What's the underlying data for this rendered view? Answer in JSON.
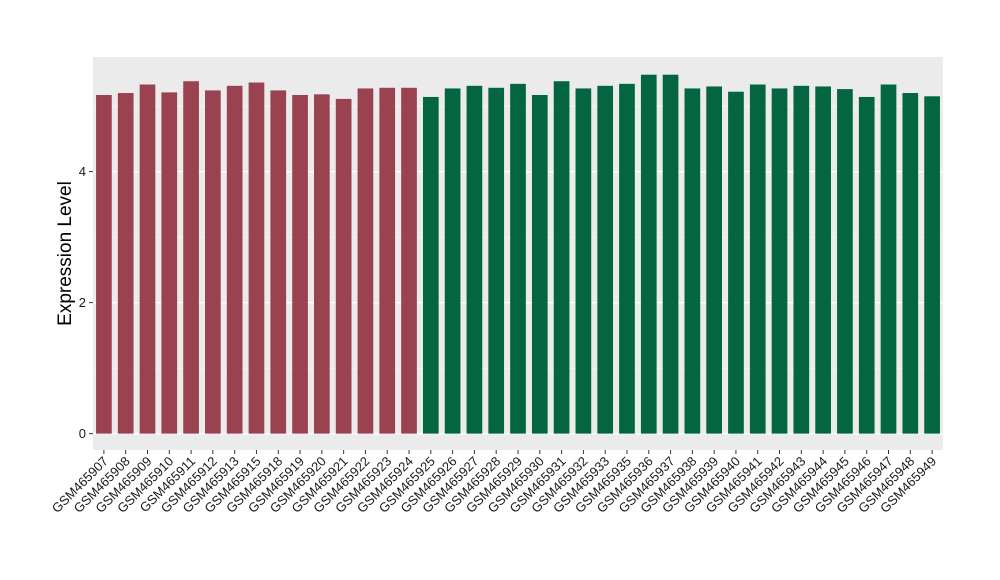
{
  "chart_data": {
    "type": "bar",
    "title": "",
    "xlabel": "",
    "ylabel": "Expression Level",
    "ylim": [
      -0.25,
      5.75
    ],
    "yticks": [
      0,
      2,
      4
    ],
    "grid": true,
    "legend": "none",
    "colors": {
      "group1": "#9b4250",
      "group2": "#036640",
      "panel": "#ebebeb",
      "gridline": "#ffffff"
    },
    "categories": [
      "GSM465907",
      "GSM465908",
      "GSM465909",
      "GSM465910",
      "GSM465911",
      "GSM465912",
      "GSM465913",
      "GSM465915",
      "GSM465918",
      "GSM465919",
      "GSM465920",
      "GSM465921",
      "GSM465922",
      "GSM465923",
      "GSM465924",
      "GSM465925",
      "GSM465926",
      "GSM465927",
      "GSM465928",
      "GSM465929",
      "GSM465930",
      "GSM465931",
      "GSM465932",
      "GSM465933",
      "GSM465935",
      "GSM465936",
      "GSM465937",
      "GSM465938",
      "GSM465939",
      "GSM465940",
      "GSM465941",
      "GSM465942",
      "GSM465943",
      "GSM465944",
      "GSM465945",
      "GSM465946",
      "GSM465947",
      "GSM465948",
      "GSM465949"
    ],
    "values": [
      5.17,
      5.2,
      5.33,
      5.21,
      5.38,
      5.24,
      5.31,
      5.36,
      5.24,
      5.17,
      5.18,
      5.11,
      5.27,
      5.28,
      5.28,
      5.14,
      5.27,
      5.31,
      5.28,
      5.34,
      5.17,
      5.38,
      5.27,
      5.31,
      5.34,
      5.48,
      5.48,
      5.27,
      5.3,
      5.22,
      5.33,
      5.27,
      5.31,
      5.3,
      5.26,
      5.14,
      5.33,
      5.2,
      5.15
    ],
    "groups": [
      1,
      1,
      1,
      1,
      1,
      1,
      1,
      1,
      1,
      1,
      1,
      1,
      1,
      1,
      1,
      2,
      2,
      2,
      2,
      2,
      2,
      2,
      2,
      2,
      2,
      2,
      2,
      2,
      2,
      2,
      2,
      2,
      2,
      2,
      2,
      2,
      2,
      2,
      2
    ]
  }
}
